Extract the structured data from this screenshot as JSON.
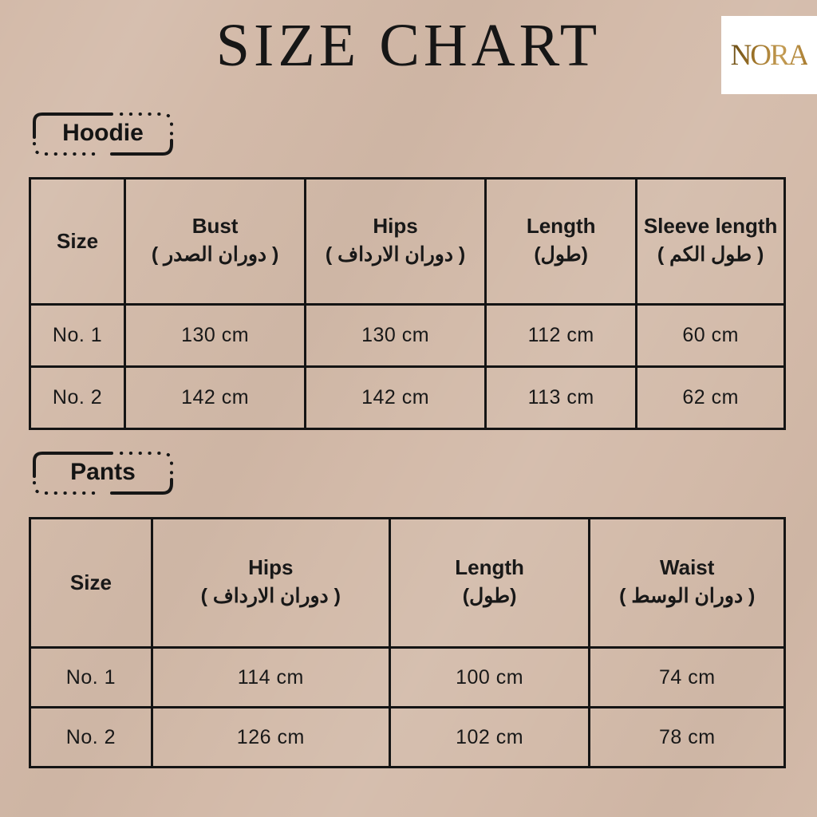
{
  "page": {
    "title": "SIZE CHART",
    "brand": "NORA",
    "colors": {
      "background": "#d3baa9",
      "text": "#181818",
      "table_border": "#141414",
      "logo_background": "#ffffff",
      "logo_gold_dark": "#6f5118",
      "logo_gold_light": "#c49c54"
    }
  },
  "sections": [
    {
      "id": "hoodie",
      "label": "Hoodie",
      "table": {
        "columns": [
          {
            "en": "Size",
            "ar": ""
          },
          {
            "en": "Bust",
            "ar": "( دوران الصدر )"
          },
          {
            "en": "Hips",
            "ar": "( دوران الارداف )"
          },
          {
            "en": "Length",
            "ar": "(طول)"
          },
          {
            "en": "Sleeve length",
            "ar": "( طول الكم )"
          }
        ],
        "rows": [
          [
            "No. 1",
            "130 cm",
            "130 cm",
            "112 cm",
            "60 cm"
          ],
          [
            "No. 2",
            "142 cm",
            "142 cm",
            "113 cm",
            "62 cm"
          ]
        ]
      }
    },
    {
      "id": "pants",
      "label": "Pants",
      "table": {
        "columns": [
          {
            "en": "Size",
            "ar": ""
          },
          {
            "en": "Hips",
            "ar": "( دوران الارداف )"
          },
          {
            "en": "Length",
            "ar": "(طول)"
          },
          {
            "en": "Waist",
            "ar": "( دوران الوسط )"
          }
        ],
        "rows": [
          [
            "No. 1",
            "114 cm",
            "100 cm",
            "74 cm"
          ],
          [
            "No. 2",
            "126 cm",
            "102 cm",
            "78 cm"
          ]
        ]
      }
    }
  ]
}
